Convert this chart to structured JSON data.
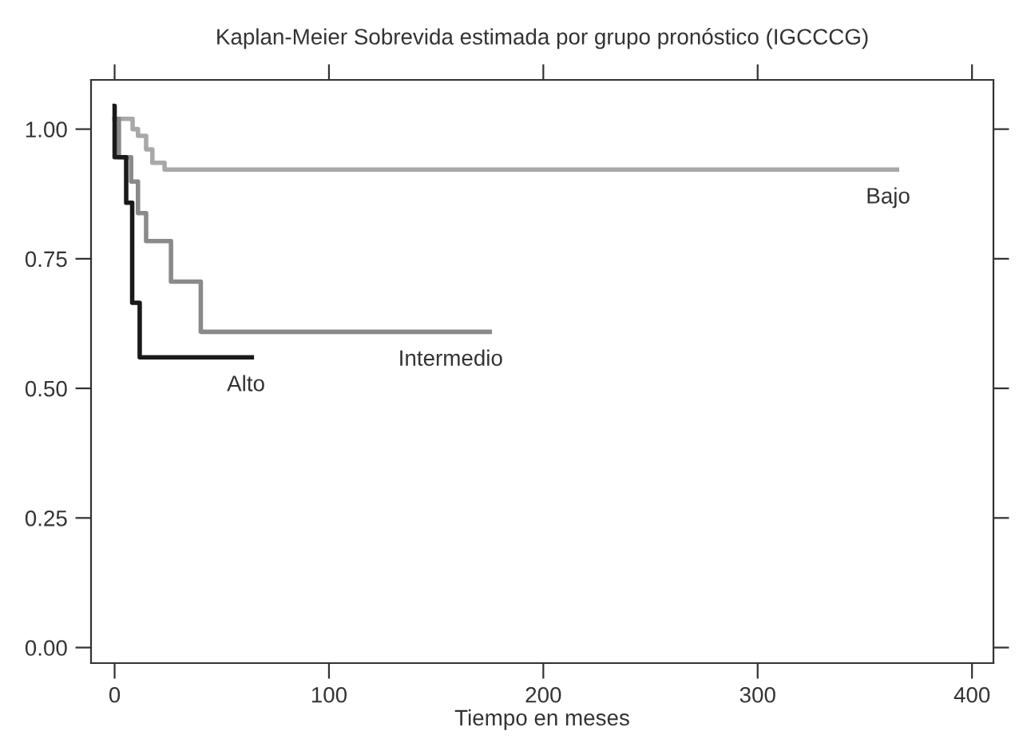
{
  "chart_data": {
    "type": "step",
    "title": "Kaplan-Meier Sobrevida estimada por grupo pronóstico (IGCCCG)",
    "xlabel": "Tiempo en meses",
    "xlim": [
      -11,
      410
    ],
    "xticks": [
      0,
      100,
      200,
      300,
      400
    ],
    "ylim": [
      -0.03,
      1.095
    ],
    "yticks": [
      {
        "value": 0,
        "label": "0.00"
      },
      {
        "value": 0.25,
        "label": "0.25"
      },
      {
        "value": 0.5,
        "label": "0.50"
      },
      {
        "value": 0.75,
        "label": "0.75"
      },
      {
        "value": 1,
        "label": "1.00"
      }
    ],
    "grid": false,
    "legend": false,
    "line_style": "solid",
    "marker": "none",
    "series": [
      {
        "name": "Bajo",
        "color": "#a8a8a8",
        "x": [
          0,
          8.4,
          10.9,
          14.7,
          17.6,
          23.3,
          365
        ],
        "values": [
          1.02,
          1.0,
          0.987,
          0.961,
          0.935,
          0.922,
          0.922
        ]
      },
      {
        "name": "Intermedio",
        "color": "#8a8a8a",
        "x": [
          0,
          2,
          7.7,
          10.9,
          14.7,
          26.3,
          40.2,
          175
        ],
        "values": [
          1.02,
          0.946,
          0.899,
          0.838,
          0.784,
          0.706,
          0.609,
          0.609
        ]
      },
      {
        "name": "Alto",
        "color": "#1a1a1a",
        "x": [
          0,
          0.01,
          5.4,
          8.2,
          11.7,
          64
        ],
        "values": [
          1.045,
          0.946,
          0.858,
          0.665,
          0.56,
          0.56
        ]
      }
    ]
  }
}
